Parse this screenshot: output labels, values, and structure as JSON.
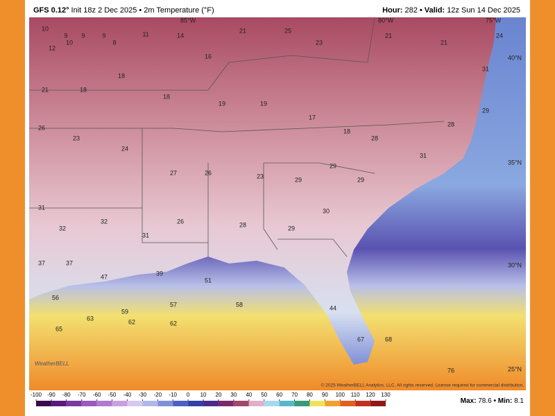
{
  "header": {
    "model": "GFS 0.12°",
    "description": "Init 18z 2 Dec 2025 • 2m Temperature (°F)",
    "hour_label": "Hour:",
    "hour": "282",
    "valid_label": "• Valid:",
    "valid": "12z Sun 14 Dec 2025"
  },
  "map": {
    "longitude_labels": [
      "85°W",
      "80°W",
      "75°W"
    ],
    "latitude_labels": [
      "40°N",
      "35°N",
      "30°N",
      "25°N"
    ],
    "temperatures": [
      10,
      9,
      9,
      9,
      8,
      10,
      12,
      11,
      14,
      16,
      21,
      25,
      23,
      21,
      21,
      24,
      21,
      18,
      18,
      18,
      19,
      19,
      17,
      18,
      26,
      23,
      24,
      27,
      26,
      23,
      29,
      29,
      28,
      31,
      28,
      31,
      29,
      31,
      32,
      32,
      31,
      26,
      28,
      29,
      30,
      29,
      37,
      37,
      47,
      39,
      51,
      58,
      57,
      59,
      63,
      56,
      65,
      62,
      62,
      44,
      67,
      68,
      76
    ],
    "copyright": "© 2025 WeatherBELL Analytics, LLC. All rights reserved. License required for commercial distribution.",
    "logo": "WeatherBELL"
  },
  "colorbar": {
    "ticks": [
      -100,
      -90,
      -80,
      -70,
      -60,
      -50,
      -40,
      -30,
      -20,
      -10,
      0,
      10,
      20,
      30,
      40,
      50,
      60,
      70,
      80,
      90,
      100,
      110,
      120,
      130
    ],
    "colors": [
      "#3a0a4a",
      "#5a1a7a",
      "#7a3aa0",
      "#9a5ac0",
      "#b07ad0",
      "#c8a0e0",
      "#d8c8ee",
      "#b0b8e8",
      "#8090d8",
      "#5060c0",
      "#3040a8",
      "#4a2a8a",
      "#7a2a6a",
      "#a04a6a",
      "#e0b0c8",
      "#a8d8f0",
      "#58b8c8",
      "#3a9a78",
      "#f0e060",
      "#f0a030",
      "#e06020",
      "#c03020",
      "#901818"
    ]
  },
  "stats": {
    "max_label": "Max:",
    "max": 78.6,
    "min_label": "• Min:",
    "min": 8.1
  }
}
